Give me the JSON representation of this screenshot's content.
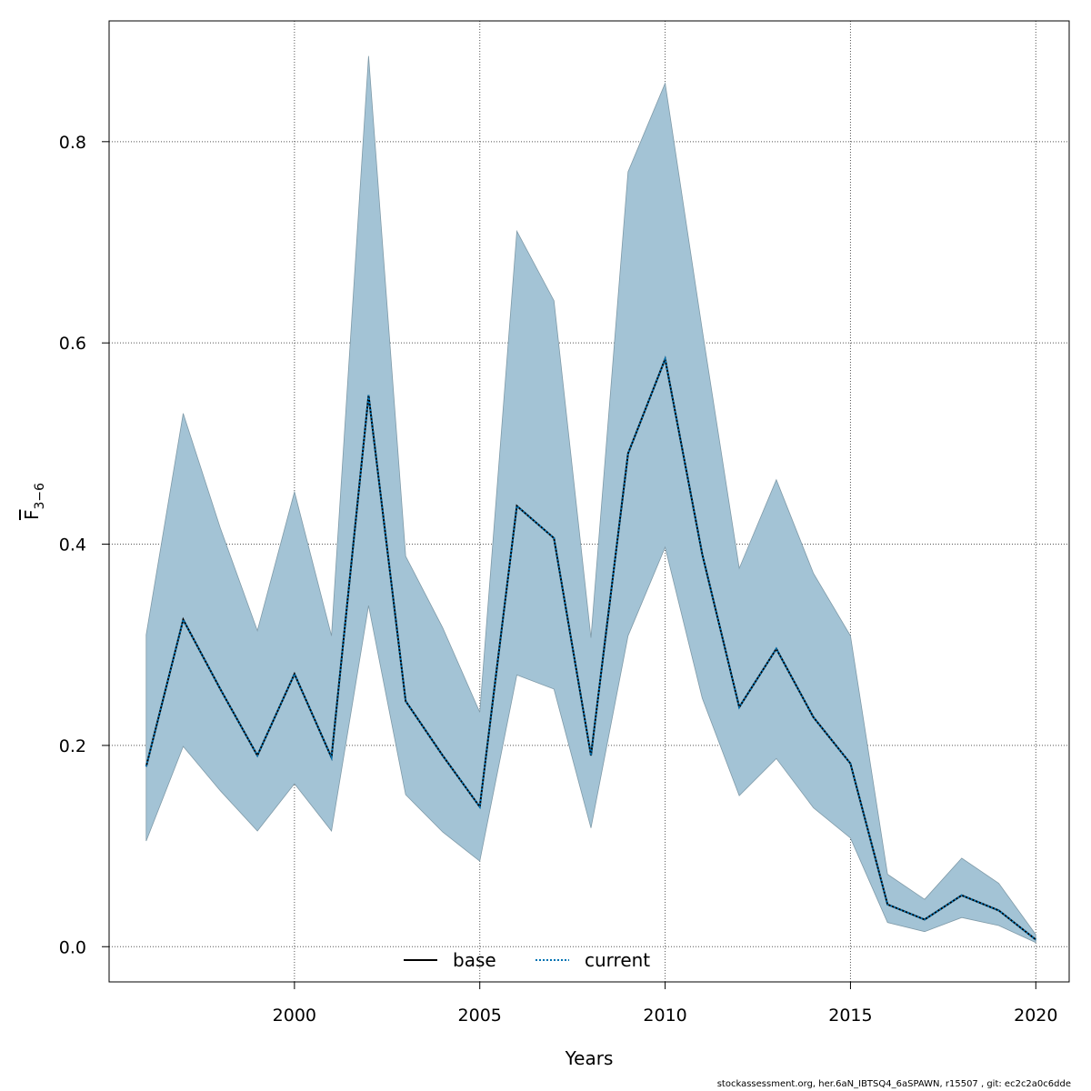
{
  "chart_data": {
    "type": "line",
    "xlabel": "Years",
    "ylabel": {
      "main": "F",
      "sub": "3−6"
    },
    "xlim": [
      1995.0,
      2020.9
    ],
    "ylim": [
      -0.035,
      0.92
    ],
    "xticks": [
      2000,
      2005,
      2010,
      2015,
      2020
    ],
    "yticks": [
      0.0,
      0.2,
      0.4,
      0.6,
      0.8
    ],
    "ytick_labels": [
      "0.0",
      "0.2",
      "0.4",
      "0.6",
      "0.8"
    ],
    "grid": true,
    "legend_position": "bottom-center",
    "band_color": "#a3c3d5",
    "band_edge_color": "#7f9aa8",
    "x": [
      1996,
      1997,
      1998,
      1999,
      2000,
      2001,
      2002,
      2003,
      2004,
      2005,
      2006,
      2007,
      2008,
      2009,
      2010,
      2011,
      2012,
      2013,
      2014,
      2015,
      2016,
      2017,
      2018,
      2019,
      2020
    ],
    "lower": [
      0.105,
      0.199,
      0.155,
      0.115,
      0.162,
      0.115,
      0.339,
      0.151,
      0.114,
      0.085,
      0.27,
      0.256,
      0.118,
      0.309,
      0.397,
      0.247,
      0.15,
      0.187,
      0.138,
      0.108,
      0.024,
      0.015,
      0.029,
      0.021,
      0.004
    ],
    "upper": [
      0.31,
      0.53,
      0.416,
      0.314,
      0.452,
      0.309,
      0.885,
      0.388,
      0.317,
      0.233,
      0.711,
      0.642,
      0.307,
      0.77,
      0.858,
      0.613,
      0.376,
      0.464,
      0.371,
      0.309,
      0.072,
      0.047,
      0.088,
      0.063,
      0.012
    ],
    "series": [
      {
        "name": "base",
        "color": "#000000",
        "style": "solid",
        "values": [
          0.179,
          0.325,
          0.256,
          0.19,
          0.271,
          0.188,
          0.548,
          0.244,
          0.19,
          0.139,
          0.438,
          0.406,
          0.19,
          0.49,
          0.584,
          0.39,
          0.238,
          0.296,
          0.228,
          0.182,
          0.042,
          0.027,
          0.051,
          0.036,
          0.007
        ]
      },
      {
        "name": "current",
        "color": "#0072b2",
        "style": "dotted",
        "values": [
          0.179,
          0.325,
          0.256,
          0.19,
          0.271,
          0.188,
          0.548,
          0.244,
          0.19,
          0.139,
          0.438,
          0.406,
          0.19,
          0.49,
          0.584,
          0.39,
          0.238,
          0.296,
          0.228,
          0.182,
          0.042,
          0.027,
          0.051,
          0.036,
          0.007
        ]
      }
    ]
  },
  "footer": "stockassessment.org, her.6aN_IBTSQ4_6aSPAWN, r15507 , git: ec2c2a0c6dde"
}
